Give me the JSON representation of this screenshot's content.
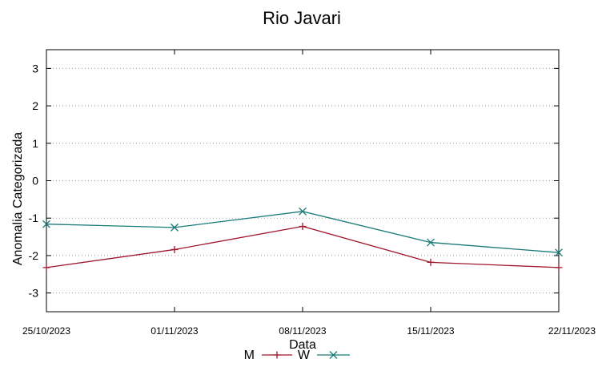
{
  "chart_data": {
    "type": "line",
    "title": "Rio Javari",
    "xlabel": "Data",
    "ylabel": "Anomalia Categorizada",
    "categories": [
      "25/10/2023",
      "01/11/2023",
      "08/11/2023",
      "15/11/2023",
      "22/11/2023"
    ],
    "ylim": [
      -3.5,
      3.5
    ],
    "yticks": [
      3,
      2,
      1,
      0,
      -1,
      -2,
      -3
    ],
    "grid": "horizontal-dotted",
    "legend_position": "bottom-center",
    "series": [
      {
        "name": "M",
        "color": "#a0162a",
        "marker": "plus",
        "values": [
          -2.32,
          -1.84,
          -1.22,
          -2.18,
          -2.32
        ]
      },
      {
        "name": "W",
        "color": "#1a7a78",
        "marker": "x",
        "values": [
          -1.16,
          -1.25,
          -0.82,
          -1.65,
          -1.92
        ]
      }
    ]
  }
}
